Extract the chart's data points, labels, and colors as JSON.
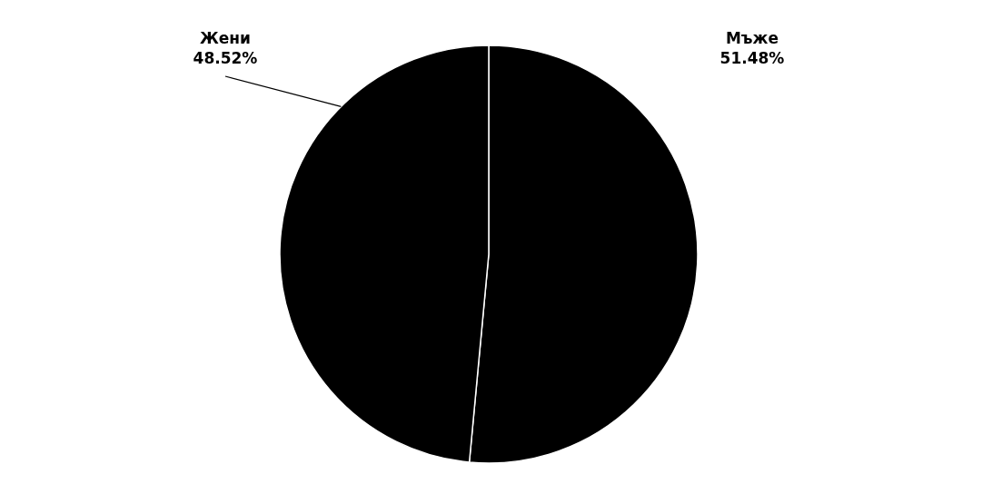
{
  "chart_data": {
    "type": "pie",
    "categories": [
      "Мъже",
      "Жени"
    ],
    "values": [
      51.48,
      48.52
    ],
    "colors": [
      "#000000",
      "#000000"
    ],
    "value_labels": [
      "51.48%",
      "48.52%"
    ]
  }
}
